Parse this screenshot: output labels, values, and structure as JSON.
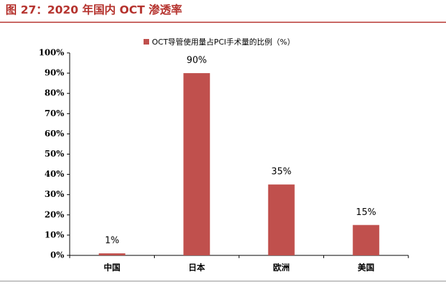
{
  "chart_data": {
    "type": "bar",
    "title": "图 27：2020 年国内 OCT 渗透率",
    "categories": [
      "中国",
      "日本",
      "欧洲",
      "美国"
    ],
    "series": [
      {
        "name": "OCT导管使用量占PCI手术量的比例（%）",
        "color": "#c0504d",
        "values": [
          1,
          90,
          35,
          15
        ],
        "value_labels": [
          "1%",
          "90%",
          "35%",
          "15%"
        ]
      }
    ],
    "ylim": [
      0,
      100
    ],
    "yticks": [
      {
        "value": 0,
        "label": "0%"
      },
      {
        "value": 10,
        "label": "10%"
      },
      {
        "value": 20,
        "label": "20%"
      },
      {
        "value": 30,
        "label": "30%"
      },
      {
        "value": 40,
        "label": "40%"
      },
      {
        "value": 50,
        "label": "50%"
      },
      {
        "value": 60,
        "label": "60%"
      },
      {
        "value": 70,
        "label": "70%"
      },
      {
        "value": 80,
        "label": "80%"
      },
      {
        "value": 90,
        "label": "90%"
      },
      {
        "value": 100,
        "label": "100%"
      }
    ]
  }
}
